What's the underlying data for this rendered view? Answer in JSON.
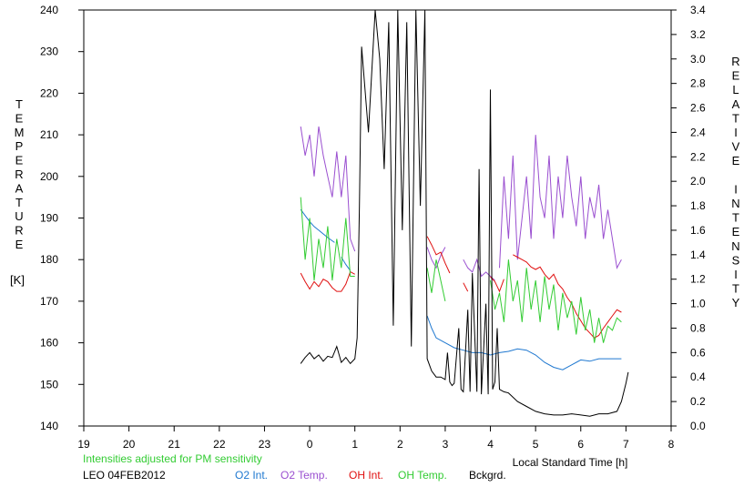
{
  "chart_data": {
    "type": "line",
    "x_ticks": [
      "19",
      "20",
      "21",
      "22",
      "23",
      "0",
      "1",
      "2",
      "3",
      "4",
      "5",
      "6",
      "7",
      "8"
    ],
    "xlabel": "Local Standard Time [h]",
    "ylabel_left_letters": [
      "T",
      "E",
      "M",
      "P",
      "E",
      "R",
      "A",
      "T",
      "U",
      "R",
      "E"
    ],
    "ylabel_left_unit": "[K]",
    "ylabel_right_letters": [
      "R",
      "E",
      "L",
      "A",
      "T",
      "I",
      "V",
      "E",
      "",
      "I",
      "N",
      "T",
      "E",
      "N",
      "S",
      "I",
      "T",
      "Y"
    ],
    "ylim_left": [
      140,
      240
    ],
    "ylim_right": [
      0.0,
      3.4
    ],
    "left_ticks": [
      "140",
      "150",
      "160",
      "170",
      "180",
      "190",
      "200",
      "210",
      "220",
      "230",
      "240"
    ],
    "right_ticks": [
      "0.0",
      "0.2",
      "0.4",
      "0.6",
      "0.8",
      "1.0",
      "1.2",
      "1.4",
      "1.6",
      "1.8",
      "2.0",
      "2.2",
      "2.4",
      "2.6",
      "2.8",
      "3.0",
      "3.2",
      "3.4"
    ],
    "note": "Intensities adjusted for PM sensitivity",
    "station": "LEO 04FEB2012",
    "series": [
      {
        "name": "O2 Int.",
        "color": "#1f78d0",
        "axis": "right",
        "segments": [
          [
            [
              23.8,
              1.77
            ],
            [
              23.9,
              1.72
            ],
            [
              24.0,
              1.67
            ],
            [
              24.1,
              1.63
            ],
            [
              24.2,
              1.6
            ],
            [
              24.3,
              1.57
            ],
            [
              24.4,
              1.54
            ],
            [
              24.55,
              1.5
            ]
          ],
          [
            [
              24.7,
              1.38
            ],
            [
              24.8,
              1.32
            ],
            [
              24.9,
              1.27
            ]
          ],
          [
            [
              26.6,
              0.9
            ],
            [
              26.7,
              0.8
            ],
            [
              26.8,
              0.72
            ],
            [
              27.0,
              0.68
            ],
            [
              27.2,
              0.64
            ],
            [
              27.4,
              0.62
            ],
            [
              27.6,
              0.6
            ],
            [
              27.8,
              0.6
            ],
            [
              28.0,
              0.58
            ],
            [
              28.2,
              0.6
            ],
            [
              28.4,
              0.61
            ],
            [
              28.6,
              0.63
            ],
            [
              28.8,
              0.62
            ],
            [
              29.0,
              0.58
            ],
            [
              29.2,
              0.52
            ],
            [
              29.4,
              0.48
            ],
            [
              29.6,
              0.46
            ],
            [
              29.8,
              0.5
            ],
            [
              30.0,
              0.54
            ],
            [
              30.2,
              0.53
            ],
            [
              30.4,
              0.55
            ],
            [
              30.6,
              0.55
            ],
            [
              30.9,
              0.55
            ]
          ]
        ]
      },
      {
        "name": "O2 Temp.",
        "color": "#9a4fd0",
        "axis": "left",
        "segments": [
          [
            [
              23.8,
              212
            ],
            [
              23.9,
              205
            ],
            [
              24.0,
              210
            ],
            [
              24.1,
              200
            ],
            [
              24.2,
              212
            ],
            [
              24.3,
              205
            ],
            [
              24.4,
              200
            ],
            [
              24.5,
              195
            ],
            [
              24.6,
              206
            ],
            [
              24.7,
              195
            ],
            [
              24.8,
              205
            ],
            [
              24.9,
              185
            ],
            [
              25.0,
              182
            ]
          ],
          [
            [
              26.6,
              183
            ],
            [
              26.7,
              180
            ],
            [
              26.8,
              178
            ],
            [
              26.9,
              181
            ],
            [
              27.0,
              183
            ]
          ],
          [
            [
              27.4,
              180
            ],
            [
              27.5,
              178
            ],
            [
              27.6,
              177
            ],
            [
              27.7,
              180
            ],
            [
              27.8,
              176
            ],
            [
              27.9,
              177
            ],
            [
              28.0,
              176
            ],
            [
              28.1,
              175
            ]
          ],
          [
            [
              28.2,
              178
            ],
            [
              28.3,
              200
            ],
            [
              28.4,
              185
            ],
            [
              28.5,
              205
            ],
            [
              28.6,
              180
            ],
            [
              28.7,
              190
            ],
            [
              28.8,
              200
            ],
            [
              28.9,
              185
            ],
            [
              29.0,
              210
            ],
            [
              29.1,
              195
            ],
            [
              29.2,
              190
            ],
            [
              29.3,
              205
            ],
            [
              29.4,
              185
            ],
            [
              29.5,
              200
            ],
            [
              29.6,
              190
            ],
            [
              29.7,
              205
            ],
            [
              29.8,
              195
            ],
            [
              29.9,
              188
            ],
            [
              30.0,
              200
            ],
            [
              30.1,
              185
            ],
            [
              30.2,
              195
            ],
            [
              30.3,
              190
            ],
            [
              30.4,
              198
            ],
            [
              30.5,
              185
            ],
            [
              30.6,
              192
            ],
            [
              30.7,
              185
            ],
            [
              30.8,
              178
            ],
            [
              30.9,
              180
            ]
          ]
        ]
      },
      {
        "name": "OH Int.",
        "color": "#e01010",
        "axis": "right",
        "segments": [
          [
            [
              23.8,
              1.25
            ],
            [
              23.9,
              1.18
            ],
            [
              24.0,
              1.12
            ],
            [
              24.1,
              1.18
            ],
            [
              24.2,
              1.14
            ],
            [
              24.3,
              1.2
            ],
            [
              24.4,
              1.18
            ],
            [
              24.5,
              1.13
            ],
            [
              24.6,
              1.1
            ],
            [
              24.7,
              1.1
            ],
            [
              24.8,
              1.16
            ],
            [
              24.9,
              1.26
            ],
            [
              25.0,
              1.24
            ]
          ],
          [
            [
              26.6,
              1.55
            ],
            [
              26.7,
              1.48
            ],
            [
              26.8,
              1.4
            ],
            [
              26.9,
              1.42
            ],
            [
              27.0,
              1.33
            ],
            [
              27.1,
              1.25
            ]
          ],
          [
            [
              27.4,
              1.17
            ],
            [
              27.5,
              1.1
            ]
          ],
          [
            [
              28.0,
              1.22
            ],
            [
              28.1,
              1.18
            ],
            [
              28.2,
              1.1
            ],
            [
              28.3,
              1.2
            ]
          ],
          [
            [
              28.5,
              1.4
            ],
            [
              28.6,
              1.38
            ],
            [
              28.7,
              1.36
            ],
            [
              28.8,
              1.34
            ],
            [
              28.9,
              1.3
            ],
            [
              29.0,
              1.28
            ],
            [
              29.1,
              1.3
            ],
            [
              29.2,
              1.24
            ],
            [
              29.3,
              1.2
            ],
            [
              29.4,
              1.24
            ],
            [
              29.5,
              1.16
            ],
            [
              29.6,
              1.12
            ],
            [
              29.7,
              1.05
            ],
            [
              29.8,
              1.0
            ],
            [
              29.9,
              0.92
            ],
            [
              30.0,
              0.86
            ],
            [
              30.1,
              0.8
            ],
            [
              30.2,
              0.76
            ],
            [
              30.3,
              0.72
            ],
            [
              30.4,
              0.74
            ],
            [
              30.5,
              0.8
            ],
            [
              30.6,
              0.85
            ],
            [
              30.7,
              0.9
            ],
            [
              30.8,
              0.95
            ],
            [
              30.9,
              0.93
            ]
          ]
        ]
      },
      {
        "name": "OH Temp.",
        "color": "#33cc33",
        "axis": "left",
        "segments": [
          [
            [
              23.8,
              195
            ],
            [
              23.9,
              180
            ],
            [
              24.0,
              190
            ],
            [
              24.1,
              175
            ],
            [
              24.2,
              185
            ],
            [
              24.3,
              178
            ],
            [
              24.4,
              188
            ],
            [
              24.5,
              175
            ],
            [
              24.6,
              185
            ],
            [
              24.7,
              178
            ],
            [
              24.8,
              190
            ],
            [
              24.9,
              176
            ],
            [
              25.0,
              176
            ]
          ],
          [
            [
              26.6,
              178
            ],
            [
              26.7,
              172
            ],
            [
              26.8,
              180
            ],
            [
              26.9,
              175
            ],
            [
              27.0,
              170
            ]
          ],
          [
            [
              28.0,
              175
            ],
            [
              28.1,
              168
            ],
            [
              28.2,
              172
            ],
            [
              28.3,
              165
            ],
            [
              28.4,
              180
            ],
            [
              28.5,
              170
            ],
            [
              28.6,
              175
            ],
            [
              28.7,
              165
            ],
            [
              28.8,
              178
            ],
            [
              28.9,
              168
            ],
            [
              29.0,
              175
            ],
            [
              29.1,
              165
            ],
            [
              29.2,
              176
            ],
            [
              29.3,
              168
            ],
            [
              29.4,
              174
            ],
            [
              29.5,
              163
            ],
            [
              29.6,
              172
            ],
            [
              29.7,
              166
            ],
            [
              29.8,
              170
            ],
            [
              29.9,
              162
            ],
            [
              30.0,
              171
            ],
            [
              30.1,
              163
            ],
            [
              30.2,
              168
            ],
            [
              30.3,
              160
            ],
            [
              30.4,
              166
            ],
            [
              30.5,
              160
            ],
            [
              30.6,
              164
            ],
            [
              30.7,
              163
            ],
            [
              30.8,
              166
            ],
            [
              30.9,
              165
            ]
          ]
        ]
      },
      {
        "name": "Bckgrd.",
        "color": "#000000",
        "axis": "right",
        "segments": [
          [
            [
              23.8,
              0.51
            ],
            [
              23.9,
              0.56
            ],
            [
              24.0,
              0.6
            ],
            [
              24.1,
              0.55
            ],
            [
              24.2,
              0.58
            ],
            [
              24.3,
              0.53
            ],
            [
              24.4,
              0.57
            ],
            [
              24.5,
              0.56
            ],
            [
              24.6,
              0.65
            ],
            [
              24.7,
              0.52
            ],
            [
              24.8,
              0.56
            ],
            [
              24.9,
              0.51
            ],
            [
              25.0,
              0.55
            ],
            [
              25.05,
              0.72
            ],
            [
              25.1,
              1.8
            ],
            [
              25.15,
              3.1
            ],
            [
              25.3,
              2.4
            ],
            [
              25.45,
              3.4
            ],
            [
              25.55,
              3.0
            ],
            [
              25.65,
              2.1
            ],
            [
              25.75,
              3.3
            ],
            [
              25.85,
              0.82
            ],
            [
              25.95,
              3.4
            ],
            [
              26.05,
              1.6
            ],
            [
              26.15,
              3.3
            ],
            [
              26.25,
              0.65
            ],
            [
              26.35,
              3.4
            ],
            [
              26.45,
              1.8
            ],
            [
              26.55,
              3.4
            ],
            [
              26.6,
              0.55
            ],
            [
              26.7,
              0.45
            ],
            [
              26.8,
              0.4
            ],
            [
              26.9,
              0.4
            ],
            [
              27.0,
              0.38
            ],
            [
              27.05,
              0.6
            ],
            [
              27.1,
              0.36
            ],
            [
              27.15,
              0.33
            ],
            [
              27.2,
              0.35
            ],
            [
              27.3,
              0.8
            ],
            [
              27.35,
              0.3
            ],
            [
              27.4,
              0.28
            ],
            [
              27.5,
              0.95
            ],
            [
              27.55,
              0.28
            ],
            [
              27.6,
              1.25
            ],
            [
              27.7,
              0.28
            ],
            [
              27.75,
              2.1
            ],
            [
              27.8,
              0.26
            ],
            [
              27.9,
              1.0
            ],
            [
              27.95,
              0.26
            ],
            [
              28.0,
              2.75
            ],
            [
              28.05,
              0.3
            ],
            [
              28.1,
              0.36
            ],
            [
              28.15,
              0.8
            ],
            [
              28.2,
              0.3
            ],
            [
              28.3,
              0.28
            ],
            [
              28.4,
              0.27
            ],
            [
              28.6,
              0.2
            ],
            [
              28.8,
              0.16
            ],
            [
              29.0,
              0.12
            ],
            [
              29.2,
              0.1
            ],
            [
              29.4,
              0.09
            ],
            [
              29.6,
              0.09
            ],
            [
              29.8,
              0.1
            ],
            [
              30.0,
              0.09
            ],
            [
              30.2,
              0.08
            ],
            [
              30.4,
              0.1
            ],
            [
              30.6,
              0.1
            ],
            [
              30.8,
              0.12
            ],
            [
              30.9,
              0.2
            ],
            [
              31.0,
              0.35
            ],
            [
              31.05,
              0.44
            ]
          ]
        ]
      }
    ]
  }
}
